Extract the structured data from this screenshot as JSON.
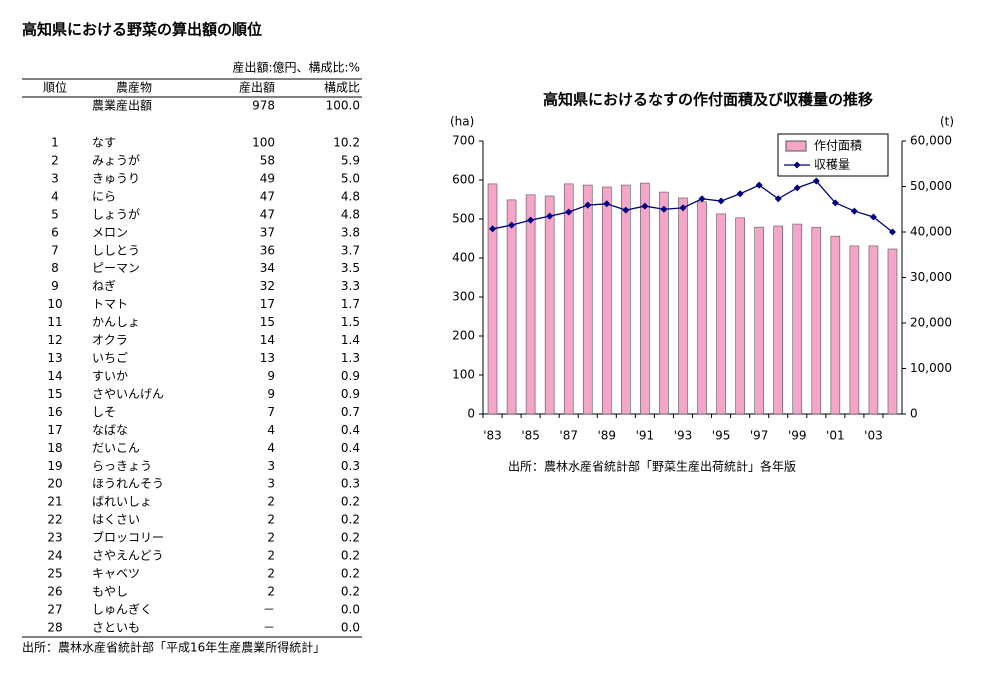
{
  "title": "高知県における野菜の算出額の順位",
  "table": {
    "unit_note": "産出額:億円、構成比:%",
    "header": [
      "順位",
      "農産物",
      "産出額",
      "構成比"
    ],
    "total": {
      "label": "農業産出額",
      "value": "978",
      "share": "100.0"
    },
    "rows": [
      [
        "1",
        "なす",
        "100",
        "10.2"
      ],
      [
        "2",
        "みょうが",
        "58",
        "5.9"
      ],
      [
        "3",
        "きゅうり",
        "49",
        "5.0"
      ],
      [
        "4",
        "にら",
        "47",
        "4.8"
      ],
      [
        "5",
        "しょうが",
        "47",
        "4.8"
      ],
      [
        "6",
        "メロン",
        "37",
        "3.8"
      ],
      [
        "7",
        "ししとう",
        "36",
        "3.7"
      ],
      [
        "8",
        "ピーマン",
        "34",
        "3.5"
      ],
      [
        "9",
        "ねぎ",
        "32",
        "3.3"
      ],
      [
        "10",
        "トマト",
        "17",
        "1.7"
      ],
      [
        "11",
        "かんしょ",
        "15",
        "1.5"
      ],
      [
        "12",
        "オクラ",
        "14",
        "1.4"
      ],
      [
        "13",
        "いちご",
        "13",
        "1.3"
      ],
      [
        "14",
        "すいか",
        "9",
        "0.9"
      ],
      [
        "15",
        "さやいんげん",
        "9",
        "0.9"
      ],
      [
        "16",
        "しそ",
        "7",
        "0.7"
      ],
      [
        "17",
        "なばな",
        "4",
        "0.4"
      ],
      [
        "18",
        "だいこん",
        "4",
        "0.4"
      ],
      [
        "19",
        "らっきょう",
        "3",
        "0.3"
      ],
      [
        "20",
        "ほうれんそう",
        "3",
        "0.3"
      ],
      [
        "21",
        "ばれいしょ",
        "2",
        "0.2"
      ],
      [
        "22",
        "はくさい",
        "2",
        "0.2"
      ],
      [
        "23",
        "ブロッコリー",
        "2",
        "0.2"
      ],
      [
        "24",
        "さやえんどう",
        "2",
        "0.2"
      ],
      [
        "25",
        "キャベツ",
        "2",
        "0.2"
      ],
      [
        "26",
        "もやし",
        "2",
        "0.2"
      ],
      [
        "27",
        "しゅんぎく",
        "－",
        "0.0"
      ],
      [
        "28",
        "さといも",
        "－",
        "0.0"
      ]
    ],
    "source": "出所：農林水産省統計部「平成16年生産農業所得統計」"
  },
  "chart_data": {
    "type": "bar_line",
    "title": "高知県におけるなすの作付面積及び収穫量の推移",
    "y_label": "(ha)",
    "y2_label": "(t)",
    "categories": [
      "'83",
      null,
      "'85",
      null,
      "'87",
      null,
      "'89",
      null,
      "'91",
      null,
      "'93",
      null,
      "'95",
      null,
      "'97",
      null,
      "'99",
      null,
      "'01",
      null,
      "'03",
      null
    ],
    "series": [
      {
        "name": "作付面積",
        "color": "#f4a6c8",
        "type": "bar",
        "values": [
          590,
          549,
          562,
          559,
          590,
          587,
          582,
          587,
          592,
          569,
          554,
          544,
          513,
          503,
          479,
          482,
          487,
          479,
          456,
          431,
          431,
          423
        ]
      },
      {
        "name": "収穫量",
        "color": "#000080",
        "type": "line",
        "axis": "y2",
        "values": [
          40700,
          41500,
          42600,
          43500,
          44400,
          45900,
          46200,
          44800,
          45700,
          45000,
          45300,
          47300,
          46800,
          48400,
          50300,
          47300,
          49700,
          51200,
          46400,
          44600,
          43300,
          40000
        ]
      }
    ],
    "ylim": [
      0,
      700
    ],
    "yticks": [
      0,
      100,
      200,
      300,
      400,
      500,
      600,
      700
    ],
    "y2lim": [
      0,
      60000
    ],
    "y2ticks": [
      0,
      {
        "value": 10000,
        "label": "10,000"
      },
      {
        "value": 20000,
        "label": "20,000"
      },
      {
        "value": 30000,
        "label": "30,000"
      },
      {
        "value": 40000,
        "label": "40,000"
      },
      {
        "value": 50000,
        "label": "50,000"
      },
      {
        "value": 60000,
        "label": "60,000"
      }
    ],
    "grid": false,
    "source": "出所：農林水産省統計部「野菜生産出荷統計」各年版"
  }
}
